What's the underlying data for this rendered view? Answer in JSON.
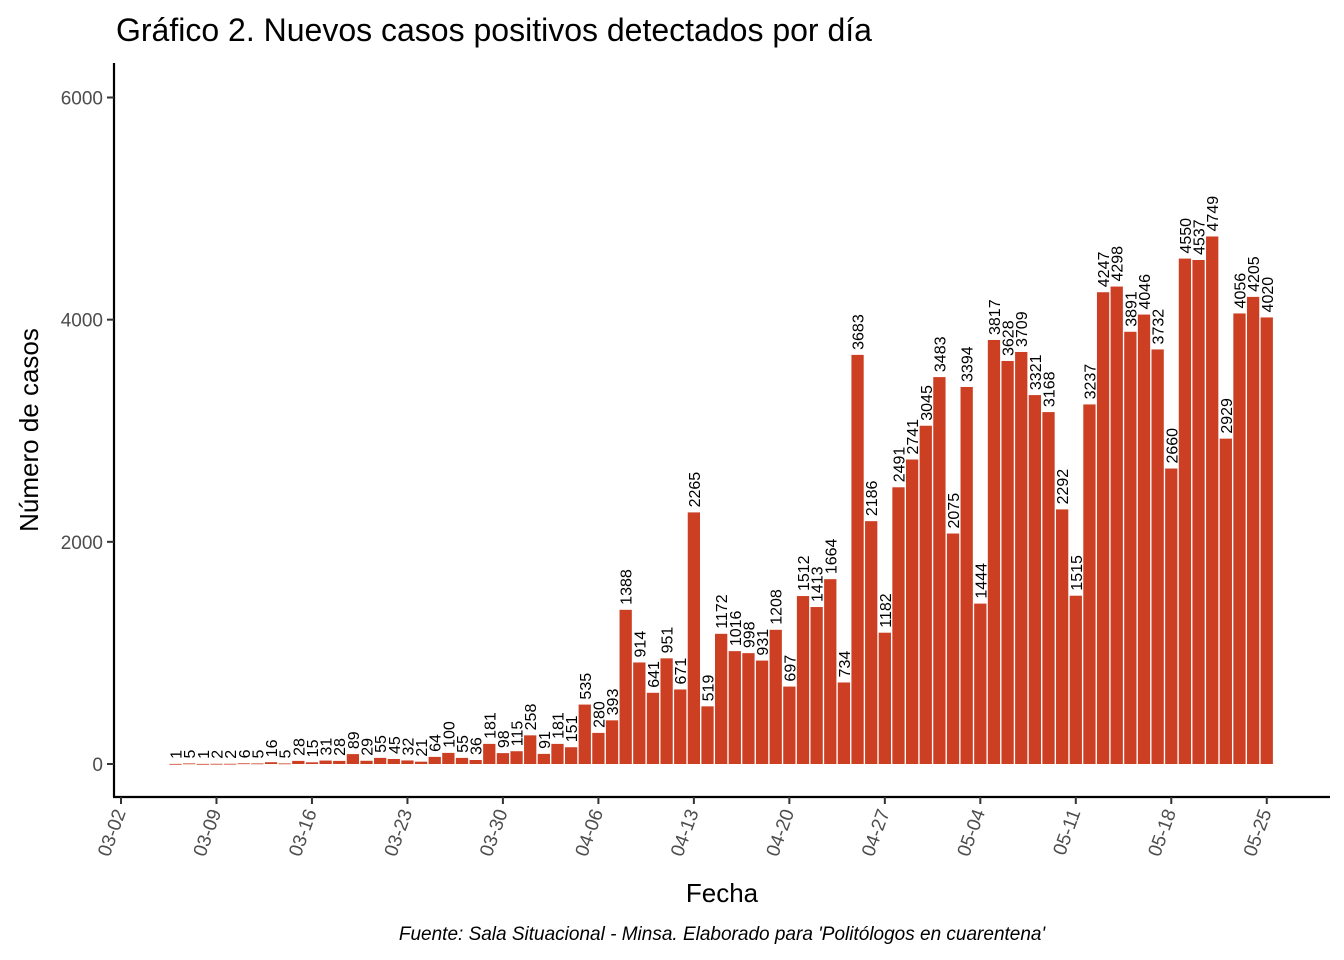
{
  "chart_data": {
    "type": "bar",
    "title": "Gráfico 2. Nuevos casos positivos detectados por día",
    "xlabel": "Fecha",
    "ylabel": "Número de casos",
    "caption": "Fuente: Sala Situacional - Minsa. Elaborado para 'Politólogos en cuarentena'",
    "bar_color": "#cc3f23",
    "ylim": [
      -300,
      6300
    ],
    "yticks": [
      0,
      2000,
      4000,
      6000
    ],
    "xticks": [
      "03-02",
      "03-09",
      "03-16",
      "03-23",
      "03-30",
      "04-06",
      "04-13",
      "04-20",
      "04-27",
      "05-04",
      "05-11",
      "05-18",
      "05-25"
    ],
    "x_start": "03-06",
    "x_end": "05-25",
    "x_domain": [
      "03-02",
      "05-25"
    ],
    "grid": false,
    "legend": "none",
    "values": [
      1,
      5,
      1,
      2,
      2,
      6,
      5,
      16,
      5,
      28,
      15,
      31,
      28,
      89,
      29,
      55,
      45,
      32,
      21,
      64,
      100,
      55,
      36,
      181,
      98,
      115,
      258,
      91,
      181,
      151,
      535,
      280,
      393,
      1388,
      914,
      641,
      951,
      671,
      2265,
      519,
      1172,
      1016,
      998,
      931,
      1208,
      697,
      1512,
      1413,
      1664,
      734,
      3683,
      2186,
      1182,
      2491,
      2741,
      3045,
      3483,
      2075,
      3394,
      1444,
      3817,
      3628,
      3709,
      3321,
      3168,
      2292,
      1515,
      3237,
      4247,
      4298,
      3891,
      4046,
      3732,
      2660,
      4550,
      4537,
      4749,
      2929,
      4056,
      4205,
      4020
    ]
  }
}
